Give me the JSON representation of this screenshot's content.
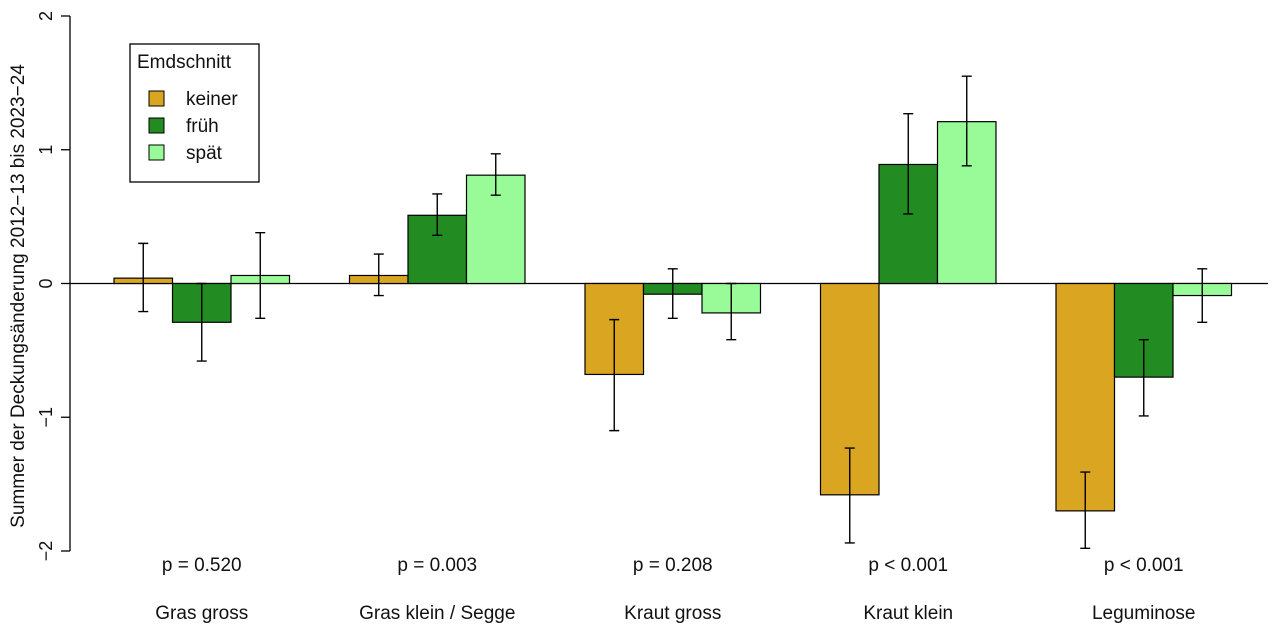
{
  "chart_data": {
    "type": "bar",
    "ylabel": "Summer der Deckungsänderung 2012−13 bis 2023−24",
    "ylim": [
      -2,
      2
    ],
    "yticks": [
      "−2",
      "−1",
      "0",
      "1",
      "2"
    ],
    "ytick_values": [
      -2,
      -1,
      0,
      1,
      2
    ],
    "categories": [
      "Gras gross",
      "Gras klein / Segge",
      "Kraut gross",
      "Kraut klein",
      "Leguminose"
    ],
    "p_values": [
      "p = 0.520",
      "p = 0.003",
      "p = 0.208",
      "p < 0.001",
      "p < 0.001"
    ],
    "legend": {
      "title": "Emdschnitt",
      "placement": "top-left"
    },
    "series": [
      {
        "name": "keiner",
        "color": "#DAA520",
        "values": [
          0.04,
          0.06,
          -0.68,
          -1.58,
          -1.7
        ],
        "err_low": [
          -0.21,
          -0.09,
          -1.1,
          -1.94,
          -1.98
        ],
        "err_high": [
          0.3,
          0.22,
          -0.27,
          -1.23,
          -1.41
        ]
      },
      {
        "name": "früh",
        "color": "#228B22",
        "values": [
          -0.29,
          0.51,
          -0.08,
          0.89,
          -0.7
        ],
        "err_low": [
          -0.58,
          0.36,
          -0.26,
          0.52,
          -0.99
        ],
        "err_high": [
          0.0,
          0.67,
          0.11,
          1.27,
          -0.42
        ]
      },
      {
        "name": "spät",
        "color": "#98FB98",
        "values": [
          0.06,
          0.81,
          -0.22,
          1.21,
          -0.09
        ],
        "err_low": [
          -0.26,
          0.66,
          -0.42,
          0.88,
          -0.29
        ],
        "err_high": [
          0.38,
          0.97,
          0.0,
          1.55,
          0.11
        ]
      }
    ]
  }
}
